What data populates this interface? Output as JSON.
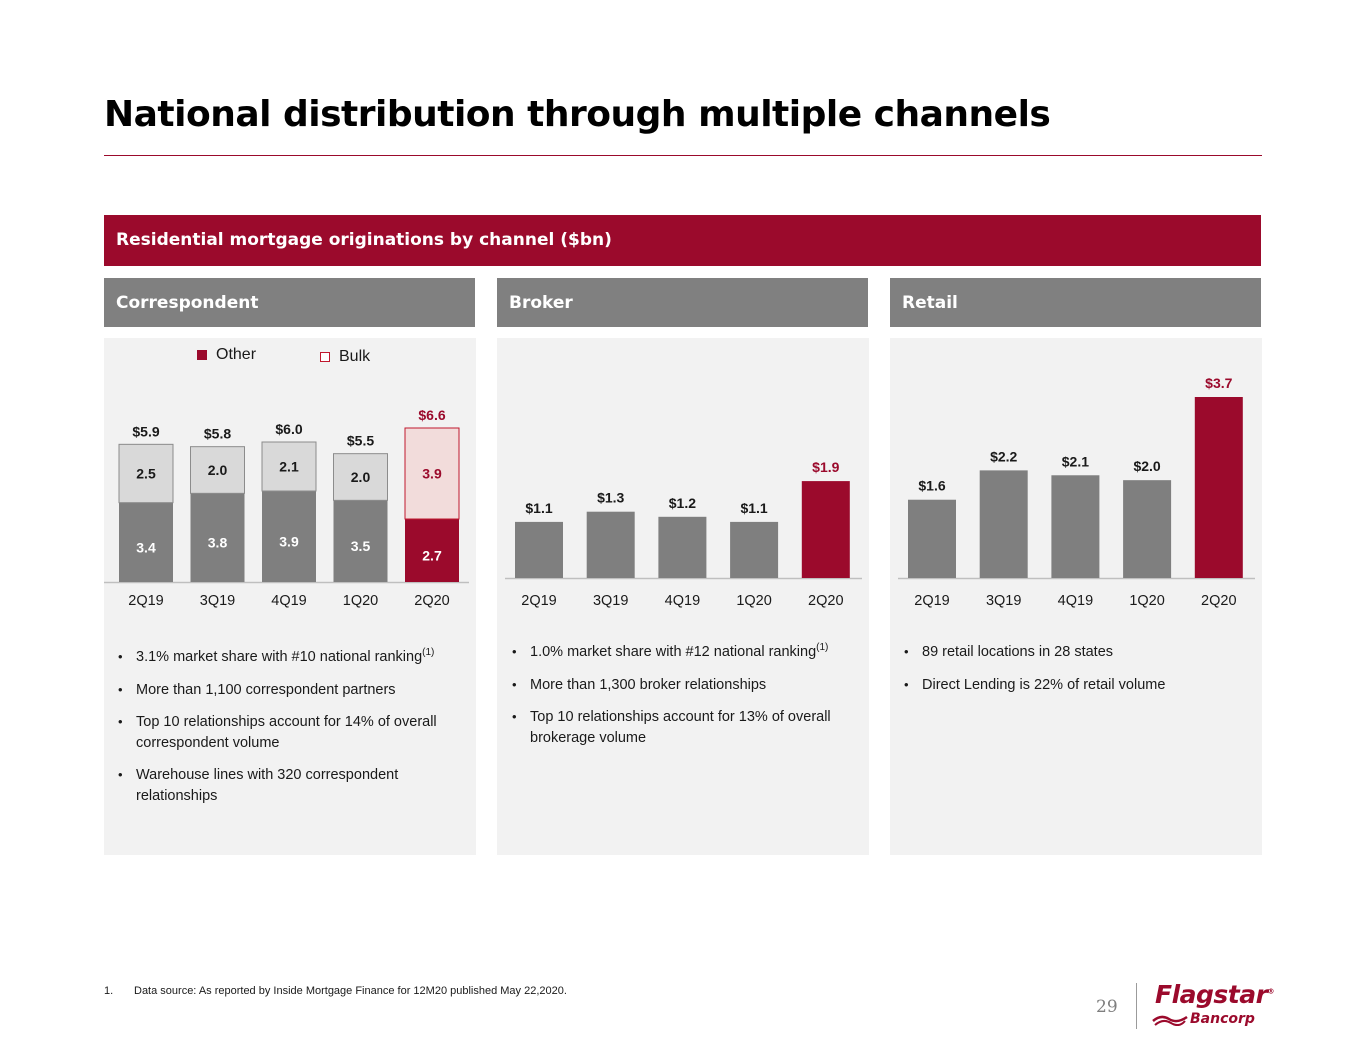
{
  "page": {
    "title": "National distribution through multiple channels",
    "section_band": "Residential mortgage originations by channel ($bn)",
    "page_number": "29"
  },
  "colors": {
    "accent": "#9b0a2c",
    "bar_gray": "#7f7f7f",
    "bulk_fill": "#d9d9d9",
    "bulk_highlight_fill": "#f2dcdb",
    "panel_bg": "#f2f2f2",
    "header_gray": "#808080"
  },
  "panels": [
    {
      "title": "Correspondent",
      "legend": {
        "other": "Other",
        "bulk": "Bulk"
      },
      "bullets": [
        {
          "text": "3.1% market share with #10 national ranking",
          "sup": "(1)"
        },
        {
          "text": "More than 1,100 correspondent partners",
          "sup": ""
        },
        {
          "text": "Top 10 relationships account for 14% of overall correspondent volume",
          "sup": ""
        },
        {
          "text": "Warehouse lines with 320 correspondent relationships",
          "sup": ""
        }
      ]
    },
    {
      "title": "Broker",
      "bullets": [
        {
          "text": "1.0% market share with #12 national ranking",
          "sup": "(1)"
        },
        {
          "text": "More than 1,300 broker relationships",
          "sup": ""
        },
        {
          "text": "Top 10 relationships account for 13% of overall brokerage volume",
          "sup": ""
        }
      ]
    },
    {
      "title": "Retail",
      "bullets": [
        {
          "text": "89 retail locations in 28 states",
          "sup": ""
        },
        {
          "text": "Direct Lending is 22% of retail volume",
          "sup": ""
        }
      ]
    }
  ],
  "chart_data": [
    {
      "type": "bar",
      "stacked": true,
      "title": "Correspondent",
      "categories": [
        "2Q19",
        "3Q19",
        "4Q19",
        "1Q20",
        "2Q20"
      ],
      "series": [
        {
          "name": "Other",
          "values": [
            3.4,
            3.8,
            3.9,
            3.5,
            2.7
          ],
          "labels": [
            "3.4",
            "3.8",
            "3.9",
            "3.5",
            "2.7"
          ]
        },
        {
          "name": "Bulk",
          "values": [
            2.5,
            2.0,
            2.1,
            2.0,
            3.9
          ],
          "labels": [
            "2.5",
            "2.0",
            "2.1",
            "2.0",
            "3.9"
          ]
        }
      ],
      "totals": [
        5.9,
        5.8,
        6.0,
        5.5,
        6.6
      ],
      "total_labels": [
        "$5.9",
        "$5.8",
        "$6.0",
        "$5.5",
        "$6.6"
      ],
      "highlight_index": 4,
      "ylim": [
        0,
        6.6
      ]
    },
    {
      "type": "bar",
      "title": "Broker",
      "categories": [
        "2Q19",
        "3Q19",
        "4Q19",
        "1Q20",
        "2Q20"
      ],
      "values": [
        1.1,
        1.3,
        1.2,
        1.1,
        1.9
      ],
      "labels": [
        "$1.1",
        "$1.3",
        "$1.2",
        "$1.1",
        "$1.9"
      ],
      "highlight_index": 4,
      "ylim": [
        0,
        2.0
      ]
    },
    {
      "type": "bar",
      "title": "Retail",
      "categories": [
        "2Q19",
        "3Q19",
        "4Q19",
        "1Q20",
        "2Q20"
      ],
      "values": [
        1.6,
        2.2,
        2.1,
        2.0,
        3.7
      ],
      "labels": [
        "$1.6",
        "$2.2",
        "$2.1",
        "$2.0",
        "$3.7"
      ],
      "highlight_index": 4,
      "ylim": [
        0,
        3.7
      ]
    }
  ],
  "footnote": {
    "number": "1.",
    "text": "Data source: As reported by Inside Mortgage Finance for 12M20 published May 22,2020."
  },
  "logo": {
    "name": "Flagstar",
    "registered": "®",
    "sub": "Bancorp"
  }
}
